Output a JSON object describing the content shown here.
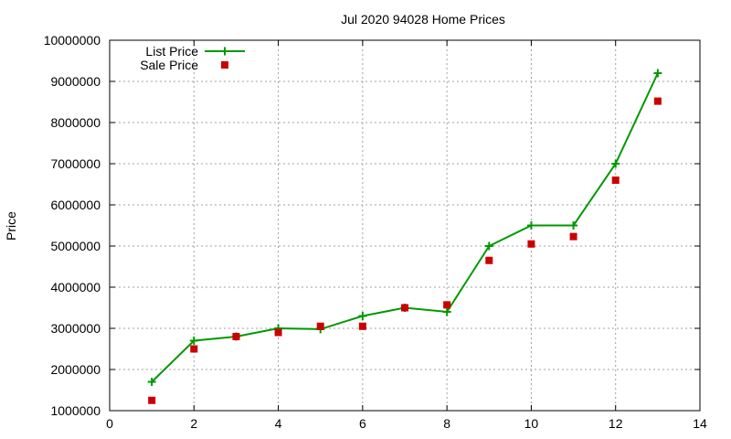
{
  "chart_data": {
    "type": "line",
    "title": "Jul 2020 94028 Home Prices",
    "xlabel": "",
    "ylabel": "Price",
    "xlim": [
      0,
      14
    ],
    "ylim": [
      1000000,
      10000000
    ],
    "x_ticks": [
      0,
      2,
      4,
      6,
      8,
      10,
      12,
      14
    ],
    "y_ticks": [
      1000000,
      2000000,
      3000000,
      4000000,
      5000000,
      6000000,
      7000000,
      8000000,
      9000000,
      10000000
    ],
    "grid": true,
    "legend_position": "top-left",
    "series": [
      {
        "name": "List Price",
        "style": "line-with-plus-markers",
        "color": "#009900",
        "x": [
          1,
          2,
          3,
          4,
          5,
          6,
          7,
          8,
          9,
          10,
          11,
          12,
          13
        ],
        "values": [
          1700000,
          2700000,
          2800000,
          3000000,
          2980000,
          3300000,
          3500000,
          3400000,
          5000000,
          5500000,
          5500000,
          7000000,
          9200000
        ]
      },
      {
        "name": "Sale Price",
        "style": "square-markers",
        "color": "#cc0000",
        "x": [
          1,
          2,
          3,
          4,
          5,
          6,
          7,
          8,
          9,
          10,
          11,
          12,
          13
        ],
        "values": [
          1250000,
          2500000,
          2800000,
          2900000,
          3050000,
          3050000,
          3500000,
          3570000,
          4650000,
          5050000,
          5230000,
          6600000,
          8520000
        ]
      }
    ]
  }
}
